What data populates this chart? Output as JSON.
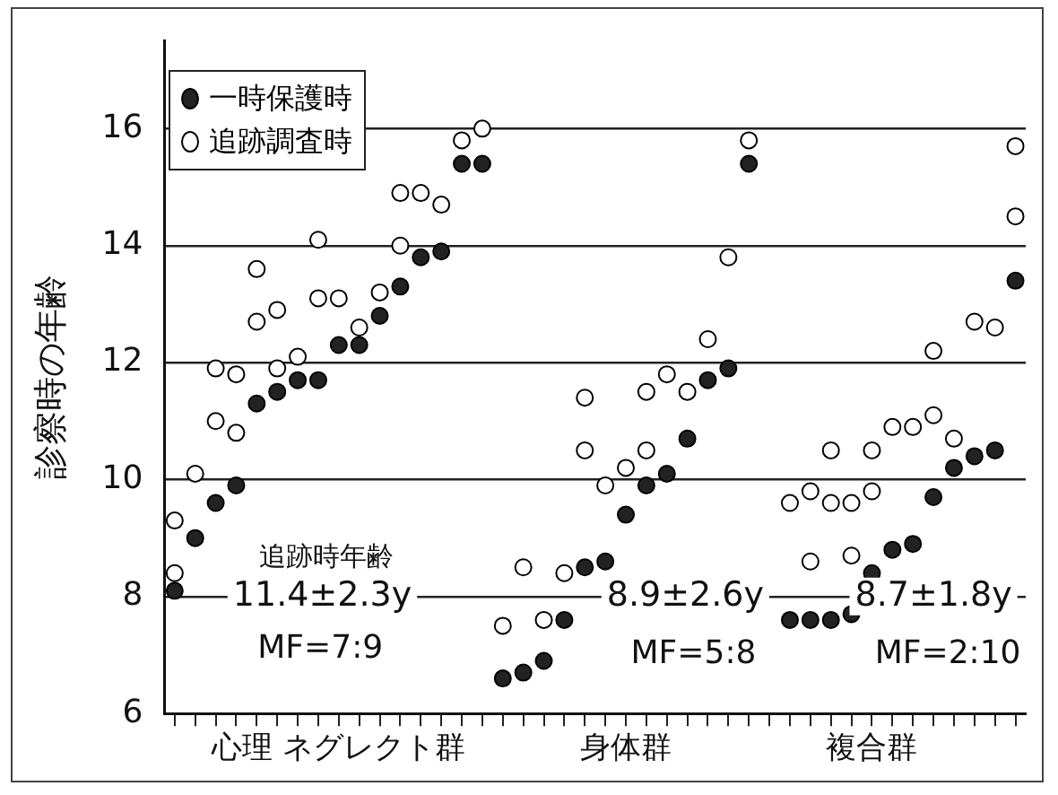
{
  "chart_data": {
    "type": "scatter",
    "ylabel": "診察時の年齢",
    "categories": [
      null,
      null,
      null,
      null,
      null,
      null,
      null,
      null,
      "心理 ネグレクト群",
      null,
      null,
      null,
      null,
      null,
      null,
      null,
      null,
      null,
      null,
      null,
      null,
      null,
      "身体群",
      null,
      null,
      null,
      null,
      null,
      null,
      null,
      null,
      null,
      null,
      null,
      "複合群",
      null,
      null,
      null,
      null,
      null,
      null,
      null
    ],
    "series": [
      {
        "name": "一時保護時",
        "color": "#222222",
        "values": [
          8.1,
          9.0,
          9.6,
          9.9,
          11.3,
          11.5,
          11.7,
          11.7,
          12.3,
          12.3,
          12.8,
          13.3,
          13.8,
          13.9,
          15.4,
          15.4,
          6.6,
          6.7,
          6.9,
          7.6,
          8.5,
          8.6,
          9.4,
          9.9,
          10.1,
          10.7,
          11.7,
          11.9,
          15.4,
          null,
          7.6,
          7.6,
          7.6,
          7.7,
          8.4,
          8.8,
          8.9,
          9.7,
          10.2,
          10.4,
          10.5,
          13.4
        ]
      },
      {
        "name": "追跡調査時",
        "color": "#ffffff",
        "values": [
          8.4,
          10.1,
          11.0,
          10.8,
          12.7,
          11.9,
          12.1,
          14.1,
          13.1,
          12.6,
          13.2,
          14.0,
          14.9,
          14.7,
          15.8,
          16.0,
          7.5,
          8.5,
          7.6,
          8.4,
          10.5,
          9.9,
          10.2,
          10.5,
          11.8,
          11.5,
          12.4,
          13.8,
          15.8,
          null,
          9.6,
          9.8,
          9.6,
          9.6,
          9.8,
          10.9,
          10.9,
          11.1,
          10.7,
          12.7,
          12.6,
          15.7
        ]
      },
      {
        "color": "#ffffff",
        "values": [
          9.3,
          null,
          11.9,
          11.8,
          13.6,
          12.9,
          null,
          13.1,
          null,
          null,
          null,
          14.9,
          null,
          null,
          null,
          null,
          null,
          null,
          null,
          null,
          11.4,
          null,
          null,
          11.5,
          null,
          null,
          null,
          null,
          null,
          null,
          null,
          8.6,
          10.5,
          8.7,
          10.5,
          null,
          null,
          12.2,
          null,
          null,
          null,
          14.5
        ]
      }
    ],
    "ylim": [
      6,
      17.5
    ],
    "yticks": [
      6,
      8,
      10,
      12,
      14,
      16
    ],
    "grid": "y",
    "legend": "top left",
    "marker": "circle",
    "annotations": [
      "追跡時年齢",
      "11.4±2.3y",
      "MF=7:9",
      "8.9±2.6y",
      "MF=5:8",
      "8.7±1.8y",
      "MF=2:10"
    ]
  }
}
